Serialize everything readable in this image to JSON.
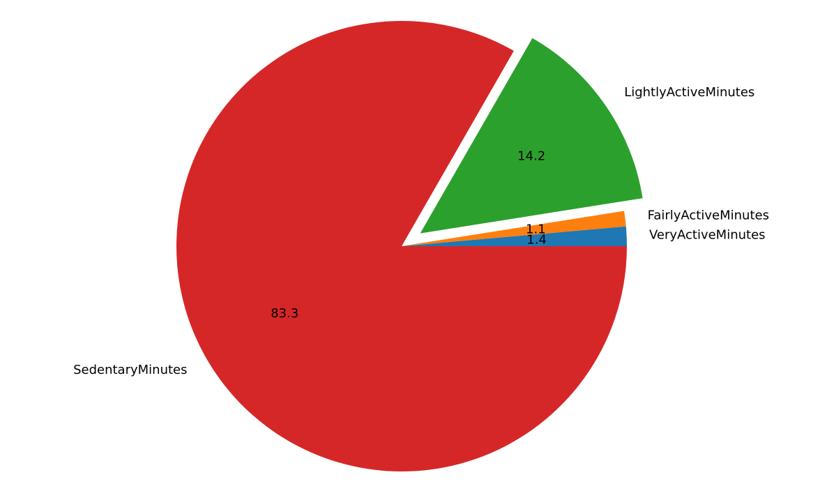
{
  "chart_data": {
    "type": "pie",
    "start_angle_deg": 0,
    "direction": "counterclockwise",
    "exploded_slice": "LightlyActiveMinutes",
    "legend": "none",
    "slices": [
      {
        "label": "VeryActiveMinutes",
        "value": 1.4,
        "display": "1.4",
        "color": "#1f77b4"
      },
      {
        "label": "FairlyActiveMinutes",
        "value": 1.1,
        "display": "1.1",
        "color": "#ff7f0e"
      },
      {
        "label": "LightlyActiveMinutes",
        "value": 14.2,
        "display": "14.2",
        "color": "#2ca02c"
      },
      {
        "label": "SedentaryMinutes",
        "value": 83.3,
        "display": "83.3",
        "color": "#d62728"
      }
    ]
  }
}
